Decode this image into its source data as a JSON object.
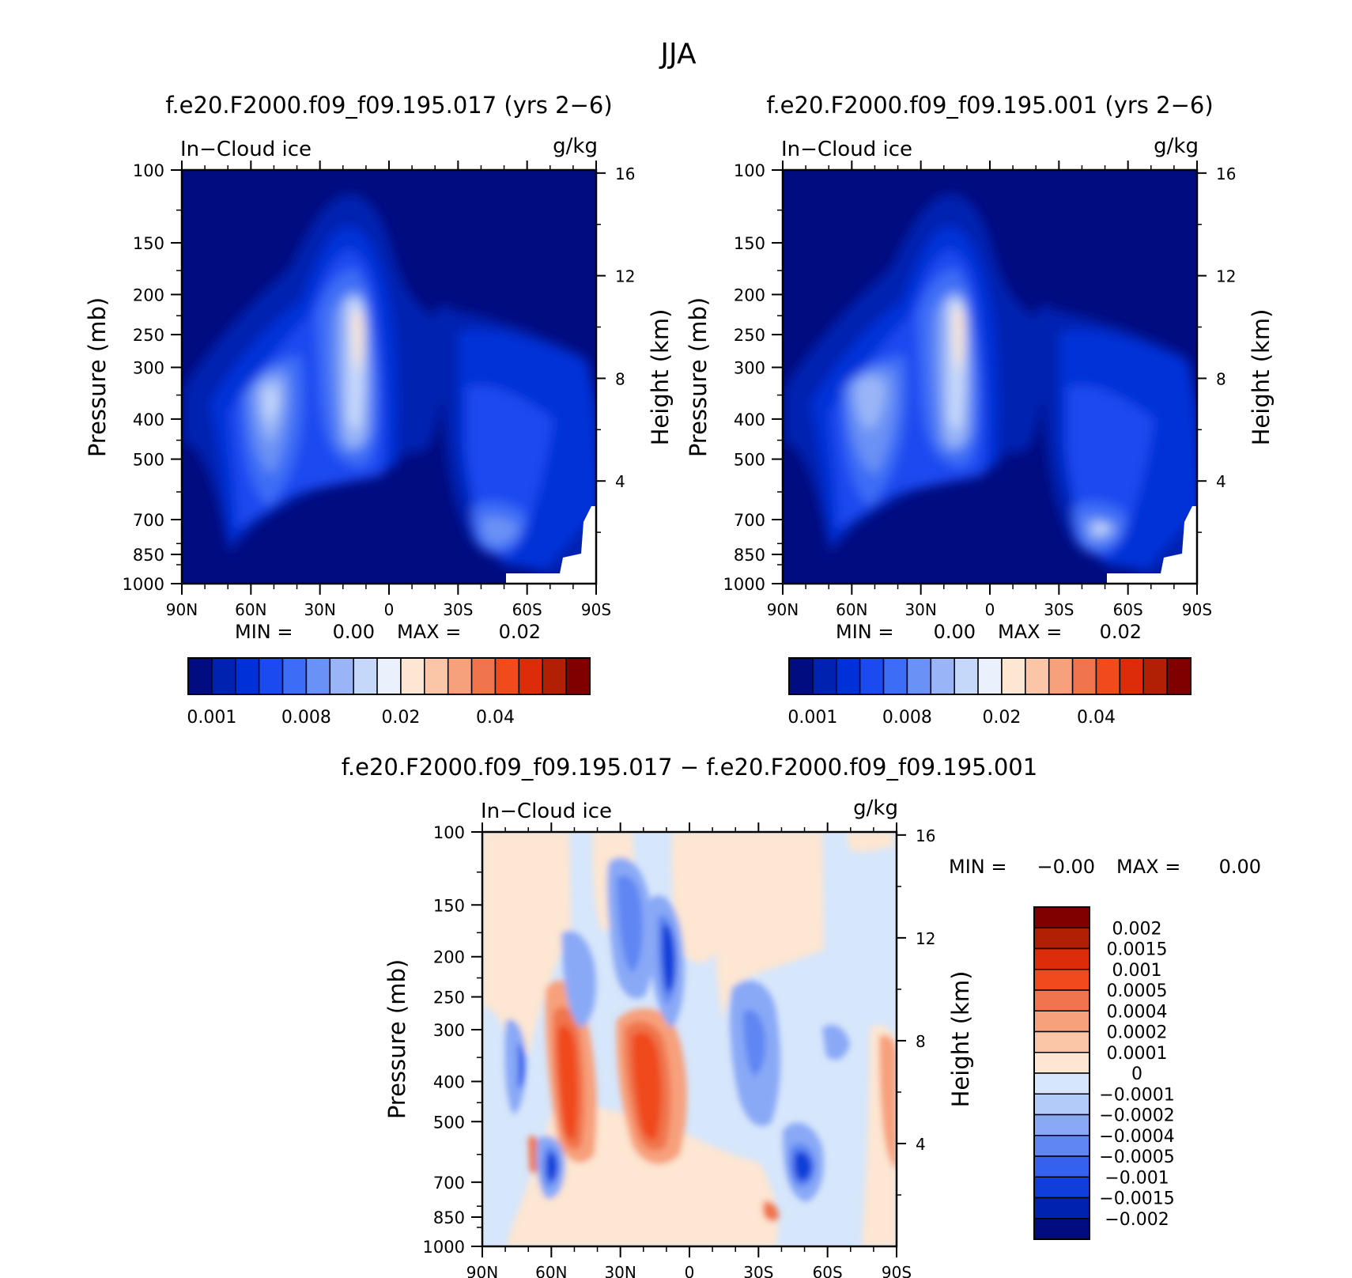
{
  "title": "JJA",
  "chart_data": [
    {
      "type": "heatmap",
      "title": "f.e20.F2000.f09_f09.195.017 (yrs 2-6)",
      "left_label": "In-Cloud ice",
      "right_label": "g/kg",
      "ylabel": "Pressure (mb)",
      "y2label": "Height (km)",
      "x_ticks": [
        "90N",
        "60N",
        "30N",
        "0",
        "30S",
        "60S",
        "90S"
      ],
      "x_values": [
        90,
        60,
        30,
        0,
        -30,
        -60,
        -90
      ],
      "y_ticks": [
        100,
        150,
        200,
        250,
        300,
        400,
        500,
        700,
        850,
        1000
      ],
      "y2_ticks": [
        16,
        12,
        8,
        4
      ],
      "ylim": [
        1000,
        100
      ],
      "xlim": [
        90,
        -90
      ],
      "min_label": "MIN =",
      "min_value": "0.00",
      "max_label": "MAX =",
      "max_value": "0.02",
      "colorbar_labels": [
        "0.001",
        "0.008",
        "0.02",
        "0.04"
      ],
      "colorbar_colors": [
        "#000c80",
        "#0022b0",
        "#0030d8",
        "#1a4af0",
        "#3e6df5",
        "#6a91f5",
        "#9ab5f7",
        "#c6d8fa",
        "#eaf1fc",
        "#fde6d2",
        "#fbc5a8",
        "#f7a07c",
        "#f0744c",
        "#f04a1d",
        "#dc2c0a",
        "#b11f05",
        "#800000"
      ]
    },
    {
      "type": "heatmap",
      "title": "f.e20.F2000.f09_f09.195.001 (yrs 2-6)",
      "left_label": "In-Cloud ice",
      "right_label": "g/kg",
      "ylabel": "Pressure (mb)",
      "y2label": "Height (km)",
      "x_ticks": [
        "90N",
        "60N",
        "30N",
        "0",
        "30S",
        "60S",
        "90S"
      ],
      "x_values": [
        90,
        60,
        30,
        0,
        -30,
        -60,
        -90
      ],
      "y_ticks": [
        100,
        150,
        200,
        250,
        300,
        400,
        500,
        700,
        850,
        1000
      ],
      "y2_ticks": [
        16,
        12,
        8,
        4
      ],
      "ylim": [
        1000,
        100
      ],
      "xlim": [
        90,
        -90
      ],
      "min_label": "MIN =",
      "min_value": "0.00",
      "max_label": "MAX =",
      "max_value": "0.02",
      "colorbar_labels": [
        "0.001",
        "0.008",
        "0.02",
        "0.04"
      ],
      "colorbar_colors": [
        "#000c80",
        "#0022b0",
        "#0030d8",
        "#1a4af0",
        "#3e6df5",
        "#6a91f5",
        "#9ab5f7",
        "#c6d8fa",
        "#eaf1fc",
        "#fde6d2",
        "#fbc5a8",
        "#f7a07c",
        "#f0744c",
        "#f04a1d",
        "#dc2c0a",
        "#b11f05",
        "#800000"
      ]
    },
    {
      "type": "heatmap",
      "title": "f.e20.F2000.f09_f09.195.017 - f.e20.F2000.f09_f09.195.001",
      "left_label": "In-Cloud ice",
      "right_label": "g/kg",
      "ylabel": "Pressure (mb)",
      "y2label": "Height (km)",
      "x_ticks": [
        "90N",
        "60N",
        "30N",
        "0",
        "30S",
        "60S",
        "90S"
      ],
      "x_values": [
        90,
        60,
        30,
        0,
        -30,
        -60,
        -90
      ],
      "y_ticks": [
        100,
        150,
        200,
        250,
        300,
        400,
        500,
        700,
        850,
        1000
      ],
      "y2_ticks": [
        16,
        12,
        8,
        4
      ],
      "ylim": [
        1000,
        100
      ],
      "xlim": [
        90,
        -90
      ],
      "min_label": "MIN =",
      "min_value": "-0.00",
      "max_label": "MAX =",
      "max_value": "0.00",
      "colorbar_labels": [
        "0.002",
        "0.0015",
        "0.001",
        "0.0005",
        "0.0004",
        "0.0002",
        "0.0001",
        "0",
        "-0.0001",
        "-0.0002",
        "-0.0004",
        "-0.0005",
        "-0.001",
        "-0.0015",
        "-0.002"
      ],
      "colorbar_colors": [
        "#800000",
        "#b11f05",
        "#dc2c0a",
        "#f04a1d",
        "#f0744c",
        "#f7a07c",
        "#fbc5a8",
        "#fde6d2",
        "#d6e6fb",
        "#b3cbf8",
        "#89a9f6",
        "#5f86f3",
        "#3661ee",
        "#0f3fd8",
        "#0022b0",
        "#000c80"
      ]
    }
  ]
}
